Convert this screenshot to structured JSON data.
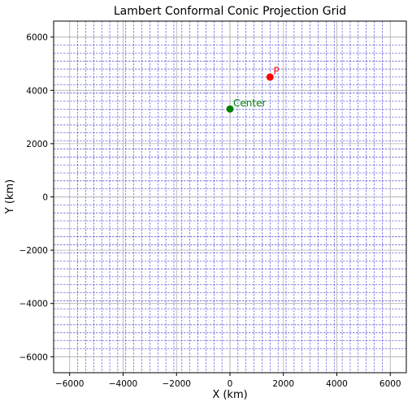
{
  "chart_data": {
    "type": "scatter",
    "title": "Lambert Conformal Conic Projection Grid",
    "xlabel": "X (km)",
    "ylabel": "Y (km)",
    "xlim": [
      -6600,
      6600
    ],
    "ylim": [
      -6600,
      6600
    ],
    "xticks": [
      -6000,
      -4000,
      -2000,
      0,
      2000,
      4000,
      6000
    ],
    "yticks": [
      -6000,
      -4000,
      -2000,
      0,
      2000,
      4000,
      6000
    ],
    "xtick_labels": [
      "−6000",
      "−4000",
      "−2000",
      "0",
      "2000",
      "4000",
      "6000"
    ],
    "ytick_labels": [
      "−6000",
      "−4000",
      "−2000",
      "0",
      "2000",
      "4000",
      "6000"
    ],
    "grid": true,
    "grid_lines": {
      "vertical": {
        "start": -6000,
        "end": 6000,
        "step": 300,
        "color": "#0000cc",
        "style": "dashed"
      },
      "horizontal": {
        "start": -6000,
        "end": 6000,
        "step": 300,
        "color": "#0000cc",
        "style": "dashed"
      }
    },
    "points": [
      {
        "label": "Center",
        "x": 0,
        "y": 3300,
        "color": "#008000"
      },
      {
        "label": "P",
        "x": 1500,
        "y": 4500,
        "color": "#ff0000"
      }
    ]
  }
}
